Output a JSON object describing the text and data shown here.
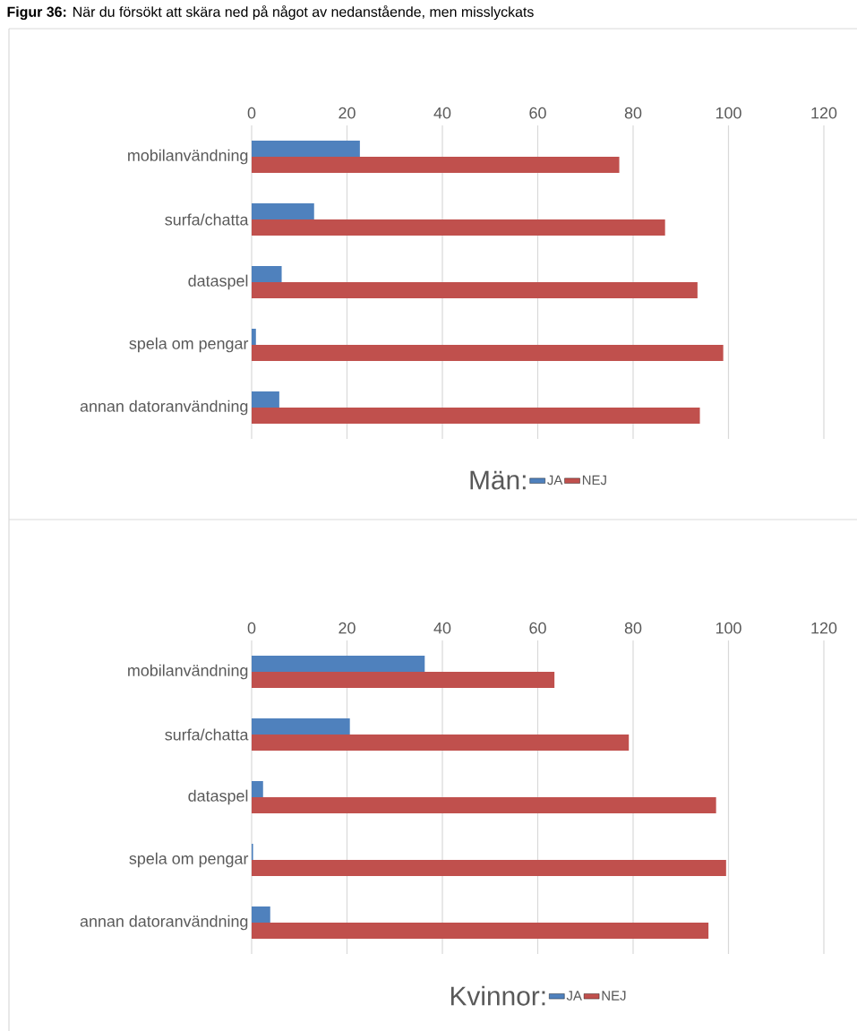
{
  "chart_data": [
    {
      "type": "bar",
      "orientation": "horizontal",
      "title": "**Figur 36:** När du försökt att skära ned på något av nedanstående, men misslyckats",
      "categories": [
        "mobilanvändning",
        "surfa/chatta",
        "dataspel",
        "spela om pengar",
        "annan datoranvändning"
      ],
      "series": [
        {
          "name": "JA",
          "color": "#4f81bd",
          "values": [
            22.7,
            13.1,
            6.3,
            0.9,
            5.8
          ]
        },
        {
          "name": "NEJ",
          "color": "#c0504d",
          "values": [
            77.1,
            86.7,
            93.5,
            98.9,
            94.0
          ]
        }
      ],
      "xlim": [
        0,
        120
      ],
      "xticks": [
        0,
        20,
        40,
        60,
        80,
        100,
        120
      ],
      "grid": "x",
      "legend": "bottom",
      "legend_title": "Män:"
    },
    {
      "type": "bar",
      "orientation": "horizontal",
      "categories": [
        "mobilanvändning",
        "surfa/chatta",
        "dataspel",
        "spela om pengar",
        "annan datoranvändning"
      ],
      "series": [
        {
          "name": "JA",
          "color": "#4f81bd",
          "values": [
            36.3,
            20.6,
            2.4,
            0.3,
            3.9
          ]
        },
        {
          "name": "NEJ",
          "color": "#c0504d",
          "values": [
            63.5,
            79.1,
            97.4,
            99.5,
            95.8
          ]
        }
      ],
      "xlim": [
        0,
        120
      ],
      "xticks": [
        0,
        20,
        40,
        60,
        80,
        100,
        120
      ],
      "grid": "x",
      "legend": "bottom",
      "legend_title": "Kvinnor:"
    }
  ]
}
